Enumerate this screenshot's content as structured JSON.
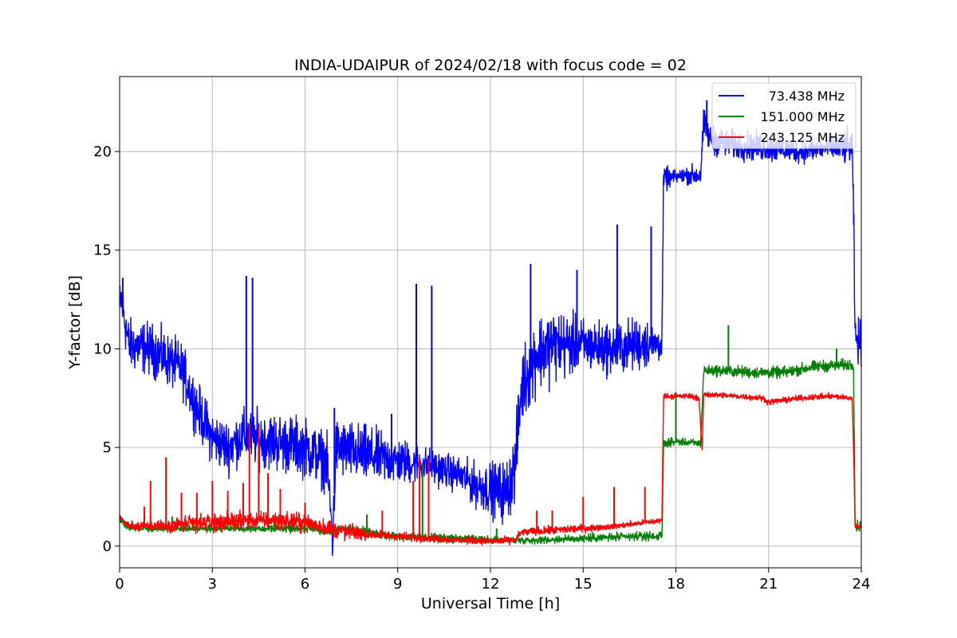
{
  "chart_data": {
    "type": "line",
    "title": "INDIA-UDAIPUR of 2024/02/18 with focus code = 02",
    "xlabel": "Universal Time [h]",
    "ylabel": "Y-factor [dB]",
    "xlim": [
      0,
      24
    ],
    "ylim": [
      -1.1,
      23.8
    ],
    "xticks": [
      0,
      3,
      6,
      9,
      12,
      15,
      18,
      21,
      24
    ],
    "xtick_labels": [
      "0",
      "3",
      "6",
      "9",
      "12",
      "15",
      "18",
      "21",
      "24"
    ],
    "yticks": [
      0,
      5,
      10,
      15,
      20
    ],
    "ytick_labels": [
      "0",
      "5",
      "10",
      "15",
      "20"
    ],
    "grid": true,
    "legend_position": "top-right",
    "series": [
      {
        "name": "73.438 MHz",
        "color": "#0000ff",
        "noise": [
          0.9,
          0.9,
          0.9,
          0.9,
          0.9,
          1.0,
          1.0,
          1.0,
          1.0,
          0.8,
          0.6,
          0.6,
          0.9,
          1.3,
          1.3,
          0.9,
          0.9,
          0.9,
          0.2,
          0.5,
          0.5,
          0.5,
          0.4,
          0.4,
          0.8
        ],
        "x": [
          0,
          0.05,
          0.3,
          1,
          2,
          2.5,
          3,
          3.5,
          4,
          5,
          6,
          6.7,
          6.9,
          7,
          8,
          9,
          10,
          11,
          11.5,
          12,
          12.5,
          12.8,
          13,
          13.5,
          14,
          15,
          16,
          17,
          17.55,
          17.6,
          18.3,
          18.8,
          18.9,
          19.1,
          20,
          21,
          22,
          23,
          23.7,
          23.75,
          23.8,
          24
        ],
        "y": [
          12.0,
          12.5,
          10.2,
          10.0,
          9.0,
          7.0,
          5.5,
          5.0,
          5.6,
          5.3,
          5.0,
          4.3,
          0.3,
          5.0,
          4.6,
          4.3,
          4.1,
          3.6,
          3.1,
          2.9,
          2.7,
          4.0,
          8.0,
          9.8,
          10.2,
          10.2,
          10.0,
          10.3,
          10.2,
          18.6,
          18.8,
          18.8,
          21.5,
          20.6,
          20.3,
          20.2,
          20.0,
          20.2,
          20.2,
          17.0,
          10.5,
          10.3
        ],
        "spikes": [
          [
            0.1,
            13.6
          ],
          [
            4.1,
            13.7
          ],
          [
            4.3,
            13.6
          ],
          [
            6.95,
            7.0
          ],
          [
            8.8,
            6.7
          ],
          [
            9.6,
            13.3
          ],
          [
            10.1,
            13.2
          ],
          [
            13.3,
            14.3
          ],
          [
            14.8,
            14.0
          ],
          [
            16.1,
            16.3
          ],
          [
            17.2,
            16.2
          ],
          [
            19.0,
            22.6
          ]
        ]
      },
      {
        "name": "151.000 MHz",
        "color": "#008000",
        "noise": [
          0.12,
          0.12,
          0.12,
          0.12,
          0.12,
          0.15,
          0.12,
          0.15,
          0.15,
          0.15,
          0.15,
          0.12,
          0.12,
          0.15,
          0.15,
          0.15,
          0.12,
          0.2,
          0.2,
          0.2,
          0.2,
          0.2
        ],
        "x": [
          0,
          0.3,
          3,
          6,
          6.8,
          7.1,
          9,
          12,
          13.5,
          15,
          17,
          17.55,
          17.6,
          18,
          18.8,
          18.9,
          19.5,
          20.5,
          21.5,
          22.5,
          23.7,
          23.75,
          23.8,
          24
        ],
        "y": [
          1.4,
          0.9,
          0.9,
          0.9,
          0.7,
          0.9,
          0.5,
          0.3,
          0.3,
          0.4,
          0.5,
          0.5,
          5.2,
          5.3,
          5.2,
          8.9,
          8.9,
          8.8,
          8.8,
          9.1,
          9.2,
          9.2,
          1.0,
          1.0
        ],
        "spikes": [
          [
            0.4,
            1.3
          ],
          [
            1.7,
            1.5
          ],
          [
            3.5,
            1.3
          ],
          [
            5.0,
            1.3
          ],
          [
            8.0,
            1.6
          ],
          [
            9.8,
            4.2
          ],
          [
            12.2,
            0.9
          ],
          [
            18.0,
            7.8
          ],
          [
            19.7,
            11.2
          ],
          [
            23.2,
            10.0
          ]
        ]
      },
      {
        "name": "243.125 MHz",
        "color": "#ff0000",
        "noise": [
          0.1,
          0.15,
          0.3,
          0.3,
          0.3,
          0.3,
          0.3,
          0.3,
          0.15,
          0.15,
          0.12,
          0.12,
          0.12,
          0.15,
          0.15,
          0.1,
          0.1,
          0.1,
          0.1,
          0.1,
          0.1,
          0.1,
          0.1,
          0.1
        ],
        "x": [
          0,
          0.3,
          0.5,
          2,
          3,
          4,
          5,
          6,
          6.8,
          7,
          8,
          9,
          10,
          11,
          12,
          12.8,
          13,
          14,
          15,
          16,
          17,
          17.55,
          17.6,
          18.5,
          18.75,
          18.85,
          18.9,
          20,
          20.8,
          21,
          22,
          23,
          23.7,
          23.75,
          23.8,
          24
        ],
        "y": [
          1.5,
          1.0,
          1.0,
          1.1,
          1.2,
          1.3,
          1.3,
          1.2,
          0.9,
          0.8,
          0.6,
          0.5,
          0.4,
          0.3,
          0.25,
          0.3,
          0.7,
          0.8,
          0.9,
          1.0,
          1.2,
          1.3,
          7.6,
          7.6,
          7.5,
          4.8,
          7.7,
          7.6,
          7.5,
          7.3,
          7.5,
          7.6,
          7.5,
          5.0,
          1.0,
          1.0
        ],
        "spikes": [
          [
            0.8,
            2.0
          ],
          [
            1.0,
            3.3
          ],
          [
            1.5,
            4.5
          ],
          [
            2.0,
            2.7
          ],
          [
            2.5,
            2.7
          ],
          [
            3.0,
            3.3
          ],
          [
            3.5,
            2.8
          ],
          [
            4.0,
            3.2
          ],
          [
            4.2,
            6.2
          ],
          [
            4.5,
            6.0
          ],
          [
            4.8,
            3.7
          ],
          [
            5.2,
            2.9
          ],
          [
            6.0,
            2.2
          ],
          [
            8.5,
            1.8
          ],
          [
            9.5,
            3.3
          ],
          [
            9.7,
            4.5
          ],
          [
            10.0,
            4.4
          ],
          [
            13.5,
            1.8
          ],
          [
            14.0,
            1.8
          ],
          [
            15.0,
            2.5
          ],
          [
            16.0,
            3.0
          ],
          [
            17.0,
            3.0
          ]
        ]
      }
    ]
  }
}
